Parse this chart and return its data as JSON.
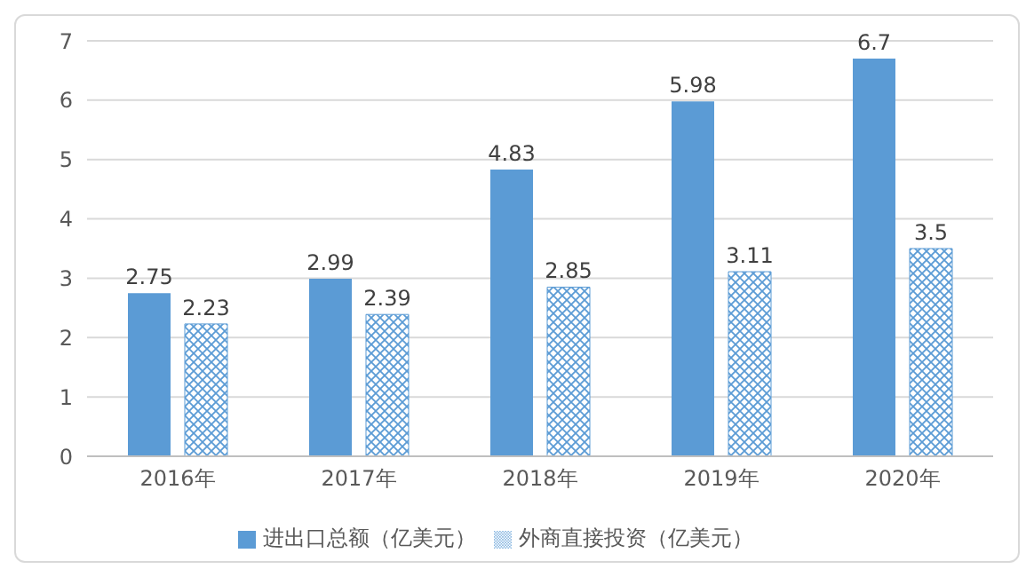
{
  "chart_data": {
    "type": "bar",
    "categories": [
      "2016年",
      "2017年",
      "2018年",
      "2019年",
      "2020年"
    ],
    "series": [
      {
        "name": "进出口总额（亿美元）",
        "color": "#5b9bd5",
        "values": [
          2.75,
          2.99,
          4.83,
          5.98,
          6.7
        ]
      },
      {
        "name": "外商直接投资（亿美元）",
        "color": "#5b9bd5",
        "values": [
          2.23,
          2.39,
          2.85,
          3.11,
          3.5
        ]
      }
    ],
    "ylim": [
      0,
      7
    ],
    "yticks": [
      0,
      1,
      2,
      3,
      4,
      5,
      6,
      7
    ],
    "grid": "y",
    "legend": "bottom",
    "data_labels": true
  }
}
